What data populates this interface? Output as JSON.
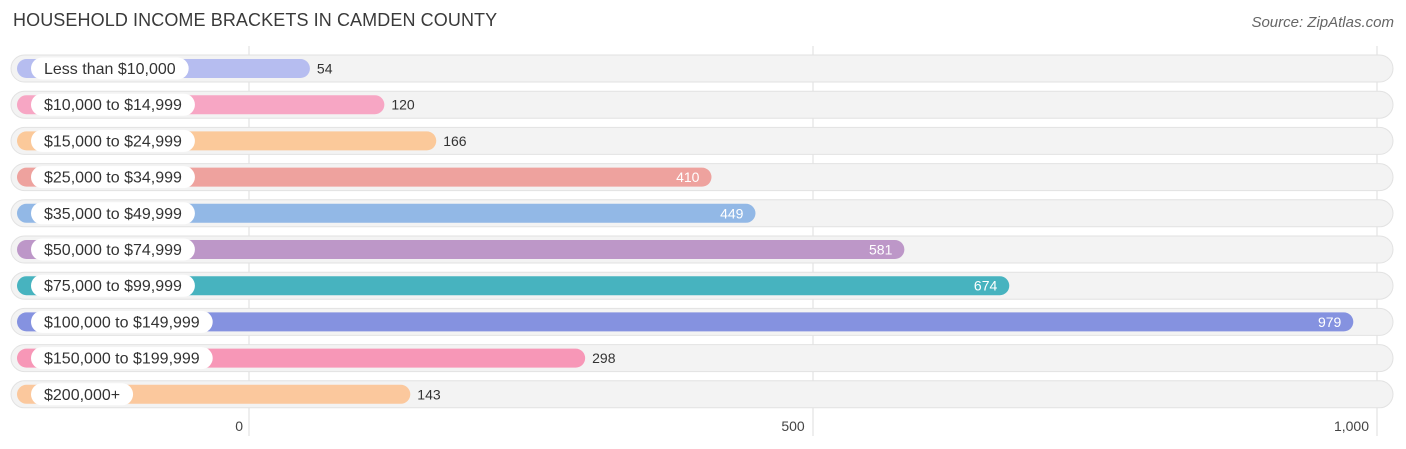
{
  "header": {
    "title": "HOUSEHOLD INCOME BRACKETS IN CAMDEN COUNTY",
    "source": "Source: ZipAtlas.com"
  },
  "chart_data": {
    "type": "bar",
    "orientation": "horizontal",
    "title": "HOUSEHOLD INCOME BRACKETS IN CAMDEN COUNTY",
    "xlabel": "",
    "ylabel": "",
    "xlim": [
      0,
      1000
    ],
    "ticks": [
      {
        "value": 0,
        "label": "0"
      },
      {
        "value": 500,
        "label": "500"
      },
      {
        "value": 1000,
        "label": "1,000"
      }
    ],
    "grid": true,
    "categories": [
      "Less than $10,000",
      "$10,000 to $14,999",
      "$15,000 to $24,999",
      "$25,000 to $34,999",
      "$35,000 to $49,999",
      "$50,000 to $74,999",
      "$75,000 to $99,999",
      "$100,000 to $149,999",
      "$150,000 to $199,999",
      "$200,000+"
    ],
    "values": [
      54,
      120,
      166,
      410,
      449,
      581,
      674,
      979,
      298,
      143
    ],
    "value_labels": [
      "54",
      "120",
      "166",
      "410",
      "449",
      "581",
      "674",
      "979",
      "298",
      "143"
    ],
    "colors": [
      "#b6bdf0",
      "#f7a6c4",
      "#fbc99a",
      "#eea29e",
      "#92b8e6",
      "#bd97c8",
      "#47b3bf",
      "#8592e0",
      "#f797b7",
      "#fbc89d"
    ]
  }
}
